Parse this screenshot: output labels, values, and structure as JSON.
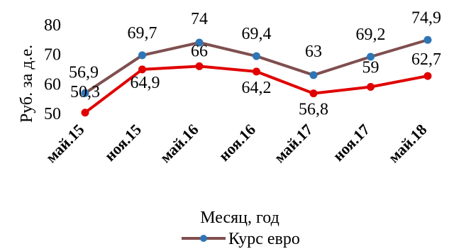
{
  "chart_data": {
    "type": "line",
    "categories": [
      "май.15",
      "ноя.15",
      "май.16",
      "ноя.16",
      "май.17",
      "ноя.17",
      "май.18"
    ],
    "series": [
      {
        "name": "Курс евро",
        "values": [
          56.9,
          69.7,
          74,
          69.4,
          63,
          69.2,
          74.9
        ],
        "color": "#7f4f4f",
        "marker_color": "#2e75b6",
        "labels": [
          "56,9",
          "69,7",
          "74",
          "69,4",
          "63",
          "69,2",
          "74,9"
        ]
      },
      {
        "name": "",
        "values": [
          50.3,
          64.9,
          66,
          64.2,
          56.8,
          59,
          62.7
        ],
        "color": "#e00000",
        "marker_color": "#e00000",
        "labels": [
          "50,3",
          "64,9",
          "66",
          "64,2",
          "56,8",
          "59",
          "62,7"
        ]
      }
    ],
    "xlabel": "Месяц, год",
    "ylabel": "Руб. за д.е.",
    "ylim": [
      50,
      80
    ],
    "yticks": [
      50,
      60,
      70,
      80
    ],
    "grid": false,
    "legend": "bottom"
  }
}
